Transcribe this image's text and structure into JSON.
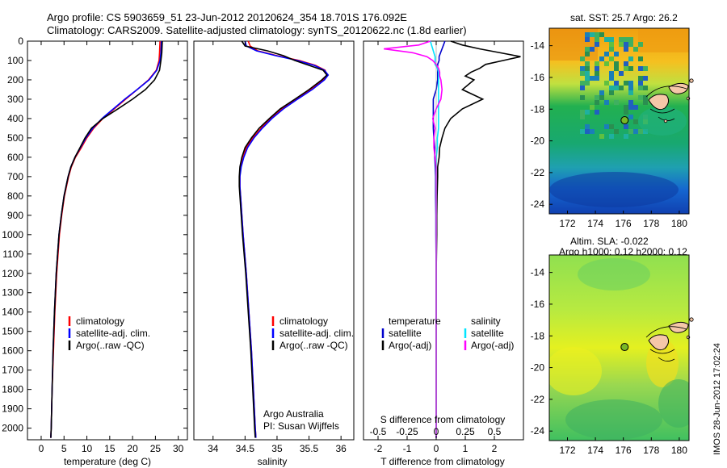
{
  "title_line1": "Argo profile: CS 5903659_51 23-Jun-2012 20120624_354 18.701S 176.092E",
  "title_line2": "Climatology: CARS2009. Satellite-adjusted climatology: synTS_20120622.nc (1.8d earlier)",
  "sst_map_title": "sat. SST: 25.7 Argo: 26.2",
  "sla_map_title_1": "Altim. SLA: -0.022",
  "sla_map_title_2": "Argo h1000: 0.12 h2000: 0.12",
  "imos_note": "IMOS 28-Jun-2012 17:02:24",
  "depth_ticks": [
    "0",
    "100",
    "200",
    "300",
    "400",
    "500",
    "600",
    "700",
    "800",
    "900",
    "1000",
    "1100",
    "1200",
    "1300",
    "1400",
    "1500",
    "1600",
    "1700",
    "1800",
    "1900",
    "2000"
  ],
  "chart_data": [
    {
      "type": "line",
      "xlabel": "temperature (deg C)",
      "ylabel": "depth",
      "xlim": [
        -3,
        32
      ],
      "ylim": [
        2060,
        0
      ],
      "x_ticks": [
        "0",
        "5",
        "10",
        "15",
        "20",
        "25",
        "30"
      ],
      "x_tick_values": [
        0,
        5,
        10,
        15,
        20,
        25,
        30
      ],
      "legend": [
        "climatology",
        "satellite-adj. clim.",
        "Argo(..raw -QC)"
      ],
      "depth": [
        0,
        60,
        100,
        150,
        200,
        250,
        300,
        350,
        400,
        450,
        500,
        550,
        600,
        650,
        700,
        800,
        900,
        1000,
        1200,
        1400,
        1600,
        1800,
        2000,
        2050
      ],
      "series": [
        {
          "name": "climatology",
          "color": "#ff0000",
          "values": [
            26.0,
            25.9,
            25.8,
            25.2,
            23.5,
            21.0,
            18.5,
            16.0,
            13.5,
            11.5,
            10.0,
            8.8,
            7.5,
            6.6,
            6.0,
            5.1,
            4.5,
            4.0,
            3.4,
            3.0,
            2.7,
            2.4,
            2.2,
            2.1
          ]
        },
        {
          "name": "satellite-adj. clim.",
          "color": "#0000ff",
          "values": [
            26.3,
            26.2,
            26.0,
            25.3,
            23.6,
            21.0,
            18.3,
            15.8,
            13.3,
            11.3,
            9.8,
            8.6,
            7.4,
            6.5,
            5.9,
            5.0,
            4.4,
            3.9,
            3.3,
            2.9,
            2.6,
            2.4,
            2.2,
            2.1
          ]
        },
        {
          "name": "Argo(..raw -QC)",
          "color": "#000000",
          "values": [
            26.5,
            26.4,
            26.2,
            25.9,
            24.8,
            22.8,
            20.0,
            16.8,
            13.5,
            11.0,
            9.6,
            8.5,
            7.4,
            6.5,
            5.9,
            5.0,
            4.4,
            3.9,
            3.3,
            2.9,
            2.6,
            2.4,
            2.2,
            2.1
          ]
        }
      ]
    },
    {
      "type": "line",
      "xlabel": "salinity",
      "ylabel": "depth",
      "xlim": [
        33.7,
        36.2
      ],
      "ylim": [
        2060,
        0
      ],
      "x_ticks": [
        "34",
        "34.5",
        "35",
        "35.5",
        "36"
      ],
      "x_tick_values": [
        34,
        34.5,
        35,
        35.5,
        36
      ],
      "legend": [
        "climatology",
        "satellite-adj. clim.",
        "Argo(..raw -QC)"
      ],
      "annotation_1": "Argo Australia",
      "annotation_2": "PI: Susan Wijffels",
      "depth": [
        0,
        25,
        50,
        75,
        100,
        125,
        150,
        175,
        200,
        250,
        300,
        350,
        400,
        450,
        500,
        550,
        600,
        650,
        700,
        750,
        800,
        900,
        1000,
        1200,
        1400,
        1600,
        1800,
        2000,
        2050
      ],
      "series": [
        {
          "name": "climatology",
          "color": "#ff0000",
          "values": [
            34.55,
            34.58,
            34.7,
            35.0,
            35.35,
            35.6,
            35.75,
            35.78,
            35.72,
            35.52,
            35.3,
            35.08,
            34.9,
            34.75,
            34.62,
            34.52,
            34.46,
            34.43,
            34.42,
            34.42,
            34.43,
            34.45,
            34.47,
            34.52,
            34.56,
            34.6,
            34.63,
            34.66,
            34.67
          ]
        },
        {
          "name": "satellite-adj. clim.",
          "color": "#0000ff",
          "values": [
            34.5,
            34.52,
            34.68,
            34.98,
            35.32,
            35.58,
            35.74,
            35.8,
            35.74,
            35.55,
            35.32,
            35.1,
            34.92,
            34.77,
            34.64,
            34.54,
            34.48,
            34.44,
            34.42,
            34.42,
            34.43,
            34.45,
            34.47,
            34.52,
            34.56,
            34.6,
            34.63,
            34.66,
            34.67
          ]
        },
        {
          "name": "Argo(..raw -QC)",
          "color": "#000000",
          "values": [
            34.45,
            34.5,
            34.85,
            35.1,
            35.28,
            35.5,
            35.72,
            35.78,
            35.7,
            35.5,
            35.28,
            35.05,
            34.88,
            34.72,
            34.6,
            34.5,
            34.45,
            34.42,
            34.41,
            34.41,
            34.42,
            34.44,
            34.46,
            34.51,
            34.55,
            34.59,
            34.62,
            34.65,
            34.66
          ]
        }
      ]
    },
    {
      "type": "line",
      "xlabel": "T difference from climatology",
      "x2label": "S difference from climatology",
      "ylabel": "depth",
      "xlim": [
        -2.5,
        3.0
      ],
      "x2lim": [
        -0.625,
        0.75
      ],
      "ylim": [
        2060,
        0
      ],
      "x_ticks": [
        "-2",
        "-1",
        "0",
        "1",
        "2"
      ],
      "x_tick_values": [
        -2,
        -1,
        0,
        1,
        2
      ],
      "x2_ticks": [
        "-0.5",
        "-0.25",
        "0",
        "0.25",
        "0.5"
      ],
      "x2_tick_values": [
        -0.5,
        -0.25,
        0,
        0.25,
        0.5
      ],
      "legend_temp_header": "temperature",
      "legend_sal_header": "salinity",
      "legend_items": [
        "satellite",
        "Argo(-adj)",
        "satellite",
        "Argo(-adj)"
      ],
      "depth": [
        0,
        20,
        40,
        60,
        80,
        100,
        120,
        140,
        160,
        180,
        200,
        250,
        300,
        350,
        400,
        450,
        500,
        550,
        600,
        650,
        700,
        800,
        900,
        1000,
        1200,
        1400,
        1600,
        1800,
        2000,
        2050
      ],
      "series": [
        {
          "name": "temperature satellite",
          "color": "#0000cc",
          "axis": "T",
          "values": [
            0.3,
            0.25,
            0.2,
            0.15,
            0.1,
            0.1,
            0.05,
            0.05,
            0.05,
            0.05,
            0.05,
            0.0,
            -0.1,
            -0.1,
            -0.1,
            -0.1,
            -0.08,
            -0.05,
            -0.05,
            -0.03,
            -0.02,
            -0.02,
            -0.01,
            -0.01,
            0.0,
            0.0,
            0.0,
            0.0,
            0.0,
            0.0
          ]
        },
        {
          "name": "temperature Argo(-adj)",
          "color": "#000000",
          "axis": "T",
          "values": [
            0.5,
            0.9,
            1.5,
            2.2,
            2.9,
            2.3,
            1.7,
            1.5,
            1.2,
            1.0,
            1.3,
            0.9,
            1.6,
            0.9,
            0.5,
            0.3,
            0.2,
            0.12,
            0.1,
            0.05,
            0.05,
            0.03,
            0.02,
            0.02,
            0.0,
            0.0,
            0.0,
            0.0,
            0.0,
            0.0
          ]
        },
        {
          "name": "salinity satellite",
          "color": "#00e5ff",
          "axis": "S",
          "values": [
            -0.05,
            -0.04,
            -0.03,
            -0.02,
            -0.01,
            -0.01,
            -0.01,
            0.01,
            0.02,
            0.02,
            0.02,
            0.02,
            0.02,
            0.02,
            0.02,
            0.02,
            0.01,
            0.01,
            0.0,
            0.0,
            0.0,
            0.0,
            0.0,
            0.0,
            0.0,
            0.0,
            0.0,
            0.0,
            0.0,
            0.0
          ]
        },
        {
          "name": "salinity Argo(-adj)",
          "color": "#ff00ff",
          "axis": "S",
          "values": [
            -0.05,
            -0.15,
            -0.45,
            -0.2,
            -0.08,
            -0.03,
            0.0,
            0.02,
            0.03,
            0.03,
            0.04,
            0.05,
            0.04,
            0.0,
            -0.03,
            -0.01,
            -0.02,
            -0.02,
            -0.01,
            0.0,
            0.0,
            0.0,
            0.0,
            0.0,
            0.0,
            0.0,
            0.0,
            0.0,
            0.0,
            0.0
          ]
        }
      ]
    },
    {
      "type": "heatmap",
      "title": "sat. SST: 25.7 Argo: 26.2",
      "xlim": [
        170.7,
        180.7
      ],
      "ylim": [
        -24.6,
        -12.9
      ],
      "x_ticks": [
        "172",
        "174",
        "176",
        "178",
        "180"
      ],
      "x_tick_values": [
        172,
        174,
        176,
        178,
        180
      ],
      "y_ticks": [
        "-14",
        "-16",
        "-18",
        "-20",
        "-22",
        "-24"
      ],
      "y_tick_values": [
        -14,
        -16,
        -18,
        -20,
        -22,
        -24
      ],
      "float_position": [
        176.092,
        -18.701
      ]
    },
    {
      "type": "heatmap",
      "title": "Altim. SLA: -0.022",
      "subtitle": "Argo h1000: 0.12 h2000: 0.12",
      "xlim": [
        170.7,
        180.7
      ],
      "ylim": [
        -24.6,
        -12.9
      ],
      "x_ticks": [
        "172",
        "174",
        "176",
        "178",
        "180"
      ],
      "x_tick_values": [
        172,
        174,
        176,
        178,
        180
      ],
      "y_ticks": [
        "-14",
        "-16",
        "-18",
        "-20",
        "-22",
        "-24"
      ],
      "y_tick_values": [
        -14,
        -16,
        -18,
        -20,
        -22,
        -24
      ],
      "float_position": [
        176.092,
        -18.701
      ]
    }
  ]
}
